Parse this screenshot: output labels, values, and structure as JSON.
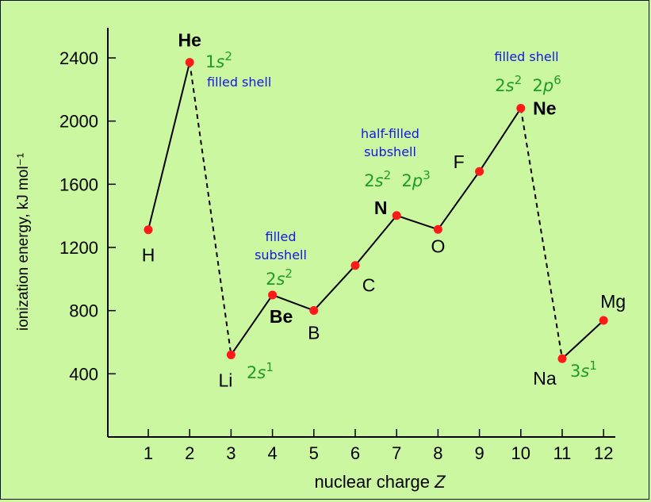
{
  "chart_data": {
    "type": "line",
    "title": "",
    "xlabel": "nuclear charge",
    "xlabel_var": "Z",
    "ylabel": "ionization energy, kJ mol⁻¹",
    "xlim": [
      0,
      12.5
    ],
    "ylim": [
      0,
      2600
    ],
    "x_ticks": [
      1,
      2,
      3,
      4,
      5,
      6,
      7,
      8,
      9,
      10,
      11,
      12
    ],
    "y_ticks": [
      400,
      800,
      1200,
      1600,
      2000,
      2400
    ],
    "grid": false,
    "series": [
      {
        "points": [
          {
            "x": 1,
            "y": 1312,
            "label": "H",
            "bold": false
          },
          {
            "x": 2,
            "y": 2372,
            "label": "He",
            "bold": true
          },
          {
            "x": 3,
            "y": 520,
            "label": "Li",
            "bold": false
          },
          {
            "x": 4,
            "y": 899,
            "label": "Be",
            "bold": true
          },
          {
            "x": 5,
            "y": 801,
            "label": "B",
            "bold": false
          },
          {
            "x": 6,
            "y": 1086,
            "label": "C",
            "bold": false
          },
          {
            "x": 7,
            "y": 1402,
            "label": "N",
            "bold": true
          },
          {
            "x": 8,
            "y": 1314,
            "label": "O",
            "bold": false
          },
          {
            "x": 9,
            "y": 1681,
            "label": "F",
            "bold": false
          },
          {
            "x": 10,
            "y": 2081,
            "label": "Ne",
            "bold": true
          },
          {
            "x": 11,
            "y": 496,
            "label": "Na",
            "bold": false
          },
          {
            "x": 12,
            "y": 738,
            "label": "Mg",
            "bold": false
          }
        ],
        "dashed_segments": [
          [
            2,
            3
          ],
          [
            10,
            11
          ]
        ]
      }
    ],
    "annotations": {
      "configs": [
        {
          "at": "He",
          "parts": [
            {
              "t": "1"
            },
            {
              "t": "s",
              "i": true
            },
            {
              "t": "2",
              "sup": true
            }
          ]
        },
        {
          "at": "Li",
          "parts": [
            {
              "t": "2"
            },
            {
              "t": "s",
              "i": true
            },
            {
              "t": "1",
              "sup": true
            }
          ]
        },
        {
          "at": "Be",
          "parts": [
            {
              "t": "2"
            },
            {
              "t": "s",
              "i": true
            },
            {
              "t": "2",
              "sup": true
            }
          ]
        },
        {
          "at": "N",
          "parts": [
            {
              "t": "2"
            },
            {
              "t": "s",
              "i": true
            },
            {
              "t": "2",
              "sup": true
            },
            {
              "t": "  2"
            },
            {
              "t": "p",
              "i": true
            },
            {
              "t": "3",
              "sup": true
            }
          ]
        },
        {
          "at": "Ne",
          "parts": [
            {
              "t": "2"
            },
            {
              "t": "s",
              "i": true
            },
            {
              "t": "2",
              "sup": true
            },
            {
              "t": "  2"
            },
            {
              "t": "p",
              "i": true
            },
            {
              "t": "6",
              "sup": true
            }
          ]
        },
        {
          "at": "Na",
          "parts": [
            {
              "t": "3"
            },
            {
              "t": "s",
              "i": true
            },
            {
              "t": "1",
              "sup": true
            }
          ]
        }
      ],
      "notes": [
        {
          "at": "He",
          "lines": [
            "filled shell"
          ]
        },
        {
          "at": "Be",
          "lines": [
            "filled",
            "subshell"
          ]
        },
        {
          "at": "N",
          "lines": [
            "half-filled",
            "subshell"
          ]
        },
        {
          "at": "Ne",
          "lines": [
            "filled shell"
          ]
        }
      ]
    },
    "colors": {
      "background": "#ccf7a1",
      "marker": "#ff1a1a",
      "line": "#000000",
      "config_text": "#1e9a2a",
      "note_text": "#1515e6"
    }
  }
}
